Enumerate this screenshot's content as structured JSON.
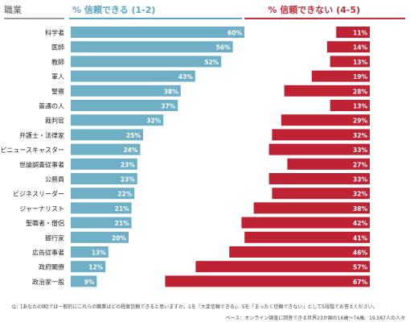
{
  "headers": {
    "occupation": "職業",
    "trust": "% 信頼できる (1-2)",
    "distrust": "% 信頼できない (4-5)"
  },
  "colors": {
    "trust": "#6fb0c6",
    "distrust": "#be2233",
    "header_trust": "#5aa6c0",
    "header_distrust": "#c0303c"
  },
  "chart_data": {
    "type": "bar",
    "categories": [
      "科学者",
      "医師",
      "教師",
      "軍人",
      "警察",
      "普通の人",
      "裁判官",
      "弁護士・法律家",
      "テレビニュースキャスター",
      "世論調査従事者",
      "公務員",
      "ビジネスリーダー",
      "ジャーナリスト",
      "聖職者・僧侶",
      "銀行家",
      "広告従事者",
      "政府閣僚",
      "政治家一般"
    ],
    "series": [
      {
        "name": "% 信頼できる (1-2)",
        "values": [
          60,
          56,
          52,
          43,
          38,
          37,
          32,
          25,
          24,
          23,
          23,
          22,
          21,
          21,
          20,
          13,
          12,
          9
        ],
        "labels": [
          "60%",
          "56%",
          "52%",
          "43%",
          "38%",
          "37%",
          "32%",
          "25%",
          "24%",
          "23%",
          "23%",
          "22%",
          "21%",
          "21%",
          "20%",
          "13%",
          "12%",
          "9%"
        ]
      },
      {
        "name": "% 信頼できない (4-5)",
        "values": [
          11,
          14,
          13,
          19,
          28,
          13,
          29,
          32,
          33,
          27,
          33,
          32,
          38,
          42,
          41,
          46,
          57,
          67
        ],
        "labels": [
          "11%",
          "14%",
          "13%",
          "19%",
          "28%",
          "13%",
          "29%",
          "32%",
          "33%",
          "27%",
          "33%",
          "32%",
          "38%",
          "42%",
          "41%",
          "46%",
          "57%",
          "67%"
        ]
      }
    ]
  },
  "notes": {
    "question": "Q：[あなたの国]では一般的にこれらの職業はどの程度信頼できると思いますか。1を「大変信頼できる」、5を「まったく信頼できない」として5段階でお答えください。",
    "base": "ベース：オンライン調査に回答できる世界23か国の16歳～74歳、19,587人の人々"
  }
}
